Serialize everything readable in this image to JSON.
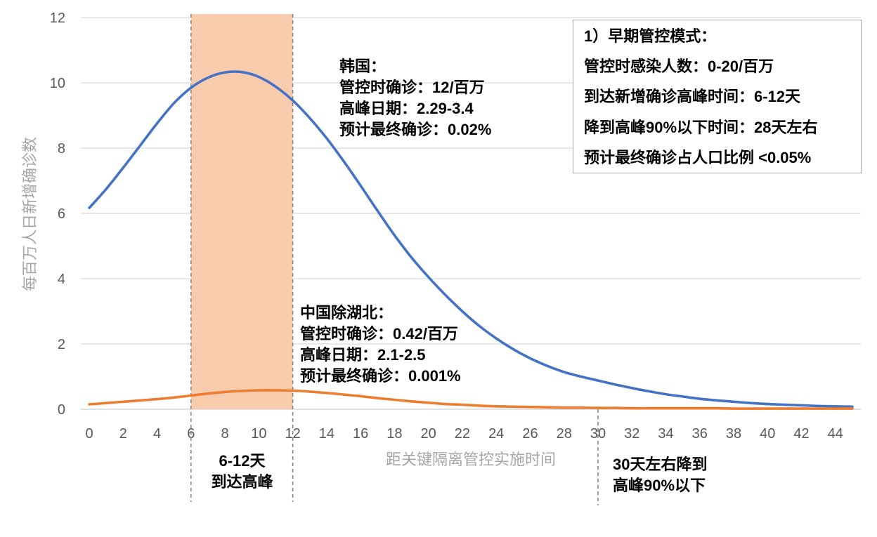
{
  "chart_data": {
    "type": "line",
    "xlabel": "距关键隔离管控实施时间",
    "ylabel": "每百万人日新增确诊数",
    "x": [
      0,
      1,
      2,
      3,
      4,
      5,
      6,
      7,
      8,
      9,
      10,
      11,
      12,
      13,
      14,
      15,
      16,
      17,
      18,
      19,
      20,
      21,
      22,
      23,
      24,
      25,
      26,
      27,
      28,
      29,
      30,
      31,
      32,
      33,
      34,
      35,
      36,
      37,
      38,
      39,
      40,
      41,
      42,
      43,
      44,
      45
    ],
    "x_ticks": [
      0,
      2,
      4,
      6,
      8,
      10,
      12,
      14,
      16,
      18,
      20,
      22,
      24,
      26,
      28,
      30,
      32,
      34,
      36,
      38,
      40,
      42,
      44
    ],
    "xlim": [
      0,
      45
    ],
    "y_ticks": [
      0,
      2,
      4,
      6,
      8,
      10,
      12
    ],
    "ylim": [
      0,
      12
    ],
    "grid": true,
    "series": [
      {
        "color": "#4472C4",
        "values": [
          6.17,
          6.75,
          7.4,
          8.08,
          8.76,
          9.38,
          9.85,
          10.16,
          10.32,
          10.33,
          10.18,
          9.88,
          9.46,
          8.92,
          8.3,
          7.6,
          6.85,
          6.08,
          5.33,
          4.65,
          4.05,
          3.5,
          3.0,
          2.55,
          2.17,
          1.84,
          1.56,
          1.33,
          1.14,
          1.0,
          0.88,
          0.76,
          0.65,
          0.55,
          0.46,
          0.39,
          0.32,
          0.27,
          0.23,
          0.19,
          0.16,
          0.14,
          0.12,
          0.1,
          0.09,
          0.08
        ]
      },
      {
        "color": "#ED7D31",
        "values": [
          0.15,
          0.19,
          0.23,
          0.27,
          0.31,
          0.36,
          0.42,
          0.48,
          0.53,
          0.56,
          0.58,
          0.58,
          0.57,
          0.54,
          0.5,
          0.45,
          0.4,
          0.34,
          0.29,
          0.24,
          0.2,
          0.16,
          0.14,
          0.11,
          0.09,
          0.08,
          0.07,
          0.06,
          0.05,
          0.05,
          0.04,
          0.04,
          0.03,
          0.03,
          0.03,
          0.03,
          0.03,
          0.03,
          0.02,
          0.02,
          0.02,
          0.02,
          0.02,
          0.02,
          0.02,
          0.02
        ]
      }
    ],
    "highlight_x_range": [
      6,
      12
    ],
    "highlight_color": "#F8CBAD",
    "reference_lines_x": [
      6,
      12,
      30
    ],
    "annotations": {
      "blue_series_note": [
        "韩国：",
        "管控时确诊：12/百万",
        "高峰日期：2.29-3.4",
        "预计最终确诊：0.02%"
      ],
      "orange_series_note": [
        "中国除湖北：",
        "管控时确诊：0.42/百万",
        "高峰日期：2.1-2.5",
        "预计最终确诊：0.001%"
      ],
      "summary_box": [
        "1）早期管控模式：",
        "管控时感染人数：0-20/百万",
        "到达新增确诊高峰时间：6-12天",
        "降到高峰90%以下时间：28天左右",
        "预计最终确诊占人口比例 <0.05%"
      ],
      "peak_window_note": [
        "6-12天",
        "到达高峰"
      ],
      "decline_note": [
        "30天左右降到",
        "高峰90%以下"
      ]
    }
  }
}
